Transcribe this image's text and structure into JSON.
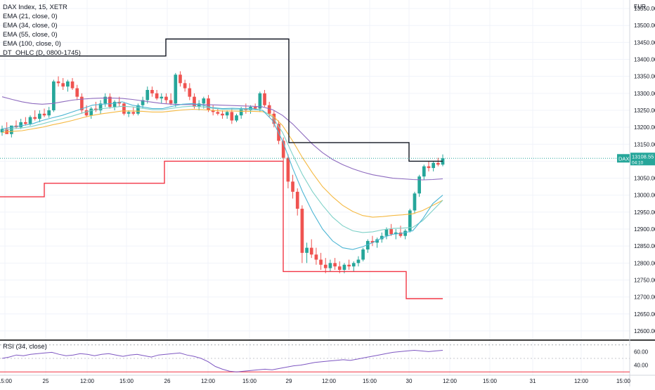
{
  "legend": {
    "title": "DAX Index, 15, XETR",
    "studies": [
      "EMA (21, close, 0)",
      "EMA (34, close, 0)",
      "EMA (55, close, 0)",
      "EMA (100, close, 0)",
      "DT_OHLC (D, 0800-1745)"
    ]
  },
  "currency": "EUR",
  "symbol_badge": "DAX",
  "last_price_label": "13108.55",
  "countdown_label": "04:10",
  "rsi_title": "RSI (34, close)",
  "colors": {
    "up": "#26a69a",
    "down": "#ef5350",
    "grid": "#f0f3fa",
    "ema21": "#4db6d4",
    "ema34": "#7fd1c8",
    "ema55": "#f5b942",
    "ema100": "#8e6bbf",
    "ohlc_high": "#131722",
    "ohlc_low": "#f23645",
    "rsi": "#7e57c2",
    "separator": "#000000"
  },
  "chart_data": {
    "type": "candlestick",
    "price_axis": {
      "ticks": [
        "13550.00",
        "13500.00",
        "13450.00",
        "13400.00",
        "13350.00",
        "13300.00",
        "13250.00",
        "13200.00",
        "13150.00",
        "13100.00",
        "13050.00",
        "13000.00",
        "12950.00",
        "12900.00",
        "12850.00",
        "12800.00",
        "12750.00",
        "12700.00",
        "12650.00",
        "12600.00"
      ],
      "range": [
        12575,
        13575
      ]
    },
    "time_axis": {
      "labels": [
        "15:00",
        "25",
        "12:00",
        "15:00",
        "26",
        "12:00",
        "15:00",
        "29",
        "12:00",
        "15:00",
        "30",
        "12:00",
        "15:00",
        "31",
        "12:00",
        "15:00"
      ]
    },
    "candles_ohlc": [
      [
        13185,
        13205,
        13175,
        13195
      ],
      [
        13195,
        13215,
        13185,
        13180
      ],
      [
        13180,
        13200,
        13170,
        13205
      ],
      [
        13205,
        13220,
        13195,
        13200
      ],
      [
        13200,
        13225,
        13195,
        13215
      ],
      [
        13215,
        13230,
        13205,
        13210
      ],
      [
        13210,
        13235,
        13205,
        13230
      ],
      [
        13230,
        13250,
        13220,
        13225
      ],
      [
        13225,
        13250,
        13215,
        13240
      ],
      [
        13240,
        13255,
        13230,
        13235
      ],
      [
        13235,
        13260,
        13228,
        13250
      ],
      [
        13250,
        13340,
        13245,
        13335
      ],
      [
        13335,
        13350,
        13320,
        13330
      ],
      [
        13330,
        13345,
        13310,
        13320
      ],
      [
        13320,
        13340,
        13305,
        13335
      ],
      [
        13335,
        13345,
        13310,
        13315
      ],
      [
        13315,
        13325,
        13280,
        13290
      ],
      [
        13290,
        13300,
        13240,
        13250
      ],
      [
        13250,
        13265,
        13230,
        13235
      ],
      [
        13235,
        13260,
        13225,
        13255
      ],
      [
        13255,
        13275,
        13245,
        13250
      ],
      [
        13250,
        13280,
        13240,
        13270
      ],
      [
        13270,
        13300,
        13260,
        13290
      ],
      [
        13290,
        13300,
        13255,
        13260
      ],
      [
        13260,
        13280,
        13250,
        13275
      ],
      [
        13275,
        13290,
        13260,
        13270
      ],
      [
        13270,
        13275,
        13235,
        13240
      ],
      [
        13240,
        13250,
        13230,
        13245
      ],
      [
        13245,
        13260,
        13235,
        13240
      ],
      [
        13240,
        13270,
        13235,
        13265
      ],
      [
        13265,
        13290,
        13255,
        13280
      ],
      [
        13280,
        13320,
        13270,
        13310
      ],
      [
        13310,
        13320,
        13290,
        13300
      ],
      [
        13300,
        13310,
        13280,
        13285
      ],
      [
        13285,
        13300,
        13270,
        13290
      ],
      [
        13290,
        13300,
        13270,
        13280
      ],
      [
        13280,
        13300,
        13265,
        13270
      ],
      [
        13270,
        13360,
        13260,
        13355
      ],
      [
        13355,
        13365,
        13320,
        13330
      ],
      [
        13330,
        13340,
        13305,
        13315
      ],
      [
        13315,
        13330,
        13280,
        13290
      ],
      [
        13290,
        13300,
        13255,
        13260
      ],
      [
        13260,
        13280,
        13250,
        13270
      ],
      [
        13270,
        13290,
        13255,
        13285
      ],
      [
        13285,
        13295,
        13245,
        13250
      ],
      [
        13250,
        13265,
        13235,
        13245
      ],
      [
        13245,
        13255,
        13235,
        13240
      ],
      [
        13240,
        13250,
        13225,
        13235
      ],
      [
        13235,
        13250,
        13225,
        13245
      ],
      [
        13245,
        13255,
        13210,
        13220
      ],
      [
        13220,
        13240,
        13215,
        13235
      ],
      [
        13235,
        13260,
        13225,
        13255
      ],
      [
        13255,
        13270,
        13240,
        13250
      ],
      [
        13250,
        13265,
        13240,
        13260
      ],
      [
        13260,
        13270,
        13250,
        13255
      ],
      [
        13255,
        13305,
        13245,
        13300
      ],
      [
        13300,
        13310,
        13260,
        13265
      ],
      [
        13265,
        13275,
        13230,
        13240
      ],
      [
        13240,
        13250,
        13200,
        13210
      ],
      [
        13210,
        13220,
        13150,
        13160
      ],
      [
        13160,
        13170,
        13100,
        13110
      ],
      [
        13110,
        13120,
        13020,
        13040
      ],
      [
        13040,
        13060,
        12990,
        13010
      ],
      [
        13010,
        13020,
        12940,
        12960
      ],
      [
        12960,
        12970,
        12800,
        12830
      ],
      [
        12830,
        12860,
        12800,
        12845
      ],
      [
        12845,
        12870,
        12815,
        12825
      ],
      [
        12825,
        12845,
        12795,
        12810
      ],
      [
        12810,
        12830,
        12780,
        12795
      ],
      [
        12795,
        12815,
        12770,
        12785
      ],
      [
        12785,
        12810,
        12775,
        12800
      ],
      [
        12800,
        12815,
        12780,
        12790
      ],
      [
        12790,
        12805,
        12770,
        12780
      ],
      [
        12780,
        12800,
        12770,
        12795
      ],
      [
        12795,
        12810,
        12780,
        12790
      ],
      [
        12790,
        12805,
        12775,
        12800
      ],
      [
        12800,
        12820,
        12790,
        12810
      ],
      [
        12810,
        12845,
        12805,
        12840
      ],
      [
        12840,
        12870,
        12830,
        12865
      ],
      [
        12865,
        12880,
        12850,
        12860
      ],
      [
        12860,
        12875,
        12845,
        12870
      ],
      [
        12870,
        12890,
        12860,
        12880
      ],
      [
        12880,
        12905,
        12870,
        12900
      ],
      [
        12900,
        12915,
        12880,
        12885
      ],
      [
        12885,
        12900,
        12870,
        12890
      ],
      [
        12890,
        12910,
        12875,
        12880
      ],
      [
        12880,
        12900,
        12870,
        12895
      ],
      [
        12895,
        12960,
        12890,
        12955
      ],
      [
        12955,
        13010,
        12945,
        13005
      ],
      [
        13005,
        13060,
        12995,
        13055
      ],
      [
        13055,
        13090,
        13045,
        13085
      ],
      [
        13085,
        13100,
        13070,
        13080
      ],
      [
        13080,
        13100,
        13070,
        13095
      ],
      [
        13095,
        13110,
        13085,
        13090
      ],
      [
        13090,
        13120,
        13085,
        13108.55
      ]
    ],
    "ema_21": [
      13195,
      13200,
      13205,
      13210,
      13220,
      13228,
      13235,
      13245,
      13255,
      13265,
      13268,
      13270,
      13275,
      13265,
      13260,
      13255,
      13255,
      13262,
      13268,
      13270,
      13265,
      13258,
      13255,
      13256,
      13255,
      13255,
      13250,
      13220,
      13160,
      13080,
      13010,
      12950,
      12900,
      12865,
      12845,
      12840,
      12848,
      12860,
      12875,
      12885,
      12888,
      12895,
      12930,
      12975,
      13000
    ],
    "ema_34": [
      13190,
      13195,
      13198,
      13203,
      13210,
      13218,
      13225,
      13233,
      13242,
      13250,
      13255,
      13258,
      13262,
      13260,
      13256,
      13252,
      13252,
      13256,
      13260,
      13262,
      13260,
      13256,
      13253,
      13253,
      13252,
      13252,
      13250,
      13230,
      13185,
      13120,
      13060,
      13010,
      12970,
      12935,
      12910,
      12895,
      12890,
      12892,
      12898,
      12902,
      12903,
      12905,
      12925,
      12955,
      12985
    ],
    "ema_55": [
      13185,
      13188,
      13190,
      13195,
      13200,
      13207,
      13213,
      13220,
      13228,
      13235,
      13240,
      13244,
      13248,
      13248,
      13247,
      13245,
      13245,
      13248,
      13251,
      13253,
      13252,
      13250,
      13248,
      13248,
      13247,
      13247,
      13246,
      13235,
      13205,
      13160,
      13110,
      13065,
      13025,
      12995,
      12970,
      12952,
      12940,
      12935,
      12937,
      12940,
      12942,
      12945,
      12955,
      12970,
      12985
    ],
    "ema_100": [
      13290,
      13282,
      13275,
      13270,
      13268,
      13270,
      13275,
      13280,
      13283,
      13285,
      13286,
      13286,
      13285,
      13282,
      13278,
      13274,
      13270,
      13268,
      13267,
      13267,
      13267,
      13266,
      13265,
      13264,
      13263,
      13262,
      13260,
      13252,
      13235,
      13210,
      13180,
      13150,
      13125,
      13105,
      13090,
      13078,
      13068,
      13060,
      13055,
      13050,
      13048,
      13046,
      13045,
      13046,
      13048
    ],
    "ohlc_high_steps": [
      13410,
      13410,
      13460,
      13460,
      13155,
      13155,
      13100
    ],
    "ohlc_low_steps": [
      12995,
      13035,
      13035,
      13100,
      13100,
      12775,
      12775,
      12695
    ],
    "rsi": {
      "ticks": [
        "60.00",
        "40.00"
      ],
      "range": [
        25,
        75
      ],
      "values": [
        50,
        52,
        55,
        54,
        56,
        57,
        58,
        59,
        56,
        54,
        55,
        57,
        56,
        54,
        56,
        57,
        55,
        53,
        55,
        56,
        54,
        52,
        55,
        56,
        57,
        58,
        55,
        53,
        50,
        45,
        38,
        34,
        31,
        30,
        31,
        32,
        33,
        34,
        33,
        35,
        37,
        39,
        40,
        42,
        44,
        45,
        46,
        47,
        48,
        47,
        49,
        51,
        53,
        55,
        57,
        59,
        60,
        61,
        62,
        61,
        60,
        61,
        62
      ]
    }
  }
}
